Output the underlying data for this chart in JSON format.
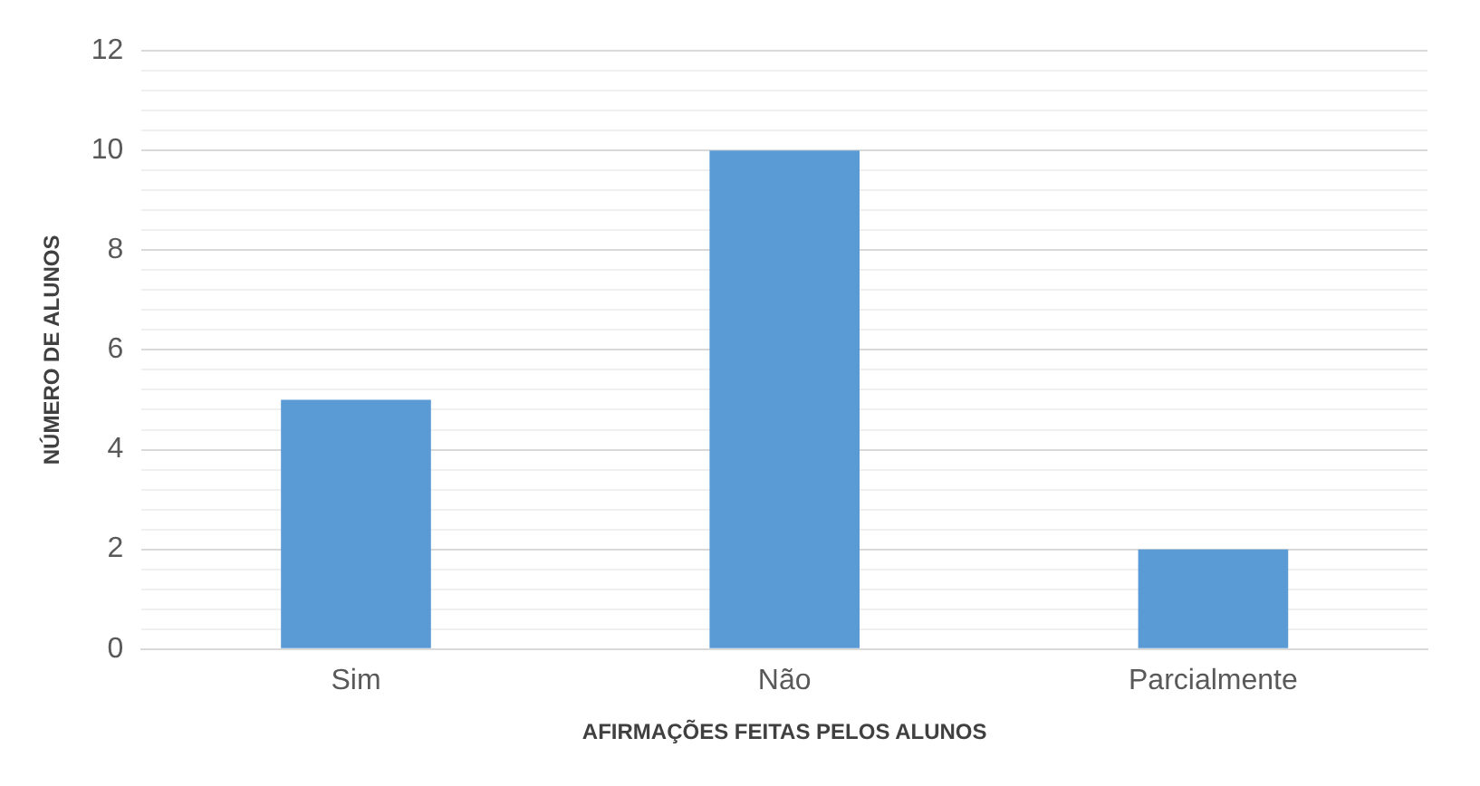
{
  "chart_data": {
    "type": "bar",
    "xlabel": "AFIRMAÇÕES FEITAS PELOS ALUNOS",
    "ylabel": "NÚMERO DE ALUNOS",
    "categories": [
      "Sim",
      "Não",
      "Parcialmente"
    ],
    "values": [
      5,
      10,
      2
    ],
    "color": "#5b9bd5",
    "ylim": [
      0,
      12
    ],
    "yticks": [
      0,
      {
        "value": 0.4,
        "label": null
      },
      {
        "value": 0.8,
        "label": null
      },
      {
        "value": 1.2,
        "label": null
      },
      {
        "value": 1.6,
        "label": null
      },
      2,
      {
        "value": 2.4,
        "label": null
      },
      {
        "value": 2.8,
        "label": null
      },
      {
        "value": 3.2,
        "label": null
      },
      {
        "value": 3.6,
        "label": null
      },
      4,
      {
        "value": 4.4,
        "label": null
      },
      {
        "value": 4.8,
        "label": null
      },
      {
        "value": 5.2,
        "label": null
      },
      {
        "value": 5.6,
        "label": null
      },
      6,
      {
        "value": 6.4,
        "label": null
      },
      {
        "value": 6.8,
        "label": null
      },
      {
        "value": 7.2,
        "label": null
      },
      {
        "value": 7.6,
        "label": null
      },
      8,
      {
        "value": 8.4,
        "label": null
      },
      {
        "value": 8.8,
        "label": null
      },
      {
        "value": 9.2,
        "label": null
      },
      {
        "value": 9.6,
        "label": null
      },
      10,
      {
        "value": 10.4,
        "label": null
      },
      {
        "value": 10.8,
        "label": null
      },
      {
        "value": 11.2,
        "label": null
      },
      {
        "value": 11.6,
        "label": null
      },
      12
    ],
    "grid": "y",
    "legend": false
  }
}
